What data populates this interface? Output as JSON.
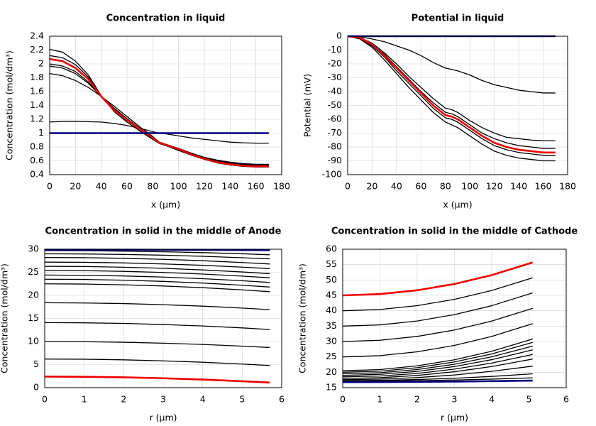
{
  "chart_data": [
    {
      "type": "line",
      "title": "Concentration in liquid",
      "xlabel": "x (µm)",
      "ylabel": "Concentration (mol/dm³)",
      "xlim": [
        0,
        180
      ],
      "ylim": [
        0.4,
        2.4
      ],
      "xticks": [
        0,
        20,
        40,
        60,
        80,
        100,
        120,
        140,
        160,
        180
      ],
      "yticks": [
        0.4,
        0.6,
        0.8,
        1,
        1.2,
        1.4,
        1.6,
        1.8,
        2,
        2.2,
        2.4
      ],
      "grid": true,
      "x": [
        0,
        10,
        20,
        30,
        40,
        50,
        60,
        70,
        80,
        85,
        90,
        100,
        110,
        120,
        130,
        140,
        150,
        160,
        170
      ],
      "series": [
        {
          "color": "#000000",
          "values": [
            1.16,
            1.17,
            1.17,
            1.165,
            1.16,
            1.14,
            1.11,
            1.07,
            1.02,
            1.0,
            0.99,
            0.96,
            0.93,
            0.91,
            0.89,
            0.87,
            0.86,
            0.855,
            0.855
          ]
        },
        {
          "color": "#000000",
          "values": [
            1.86,
            1.83,
            1.76,
            1.66,
            1.53,
            1.39,
            1.24,
            1.09,
            0.95,
            0.87,
            0.84,
            0.78,
            0.71,
            0.65,
            0.61,
            0.58,
            0.56,
            0.55,
            0.55
          ]
        },
        {
          "color": "#000000",
          "values": [
            1.97,
            1.94,
            1.86,
            1.72,
            1.53,
            1.36,
            1.21,
            1.07,
            0.94,
            0.86,
            0.83,
            0.77,
            0.7,
            0.64,
            0.6,
            0.57,
            0.55,
            0.54,
            0.54
          ]
        },
        {
          "color": "#000000",
          "values": [
            2.0,
            1.97,
            1.89,
            1.74,
            1.53,
            1.35,
            1.2,
            1.07,
            0.94,
            0.86,
            0.83,
            0.77,
            0.7,
            0.64,
            0.59,
            0.56,
            0.54,
            0.53,
            0.53
          ]
        },
        {
          "color": "#000000",
          "values": [
            2.12,
            2.09,
            1.99,
            1.81,
            1.54,
            1.33,
            1.18,
            1.05,
            0.92,
            0.85,
            0.82,
            0.76,
            0.69,
            0.63,
            0.58,
            0.55,
            0.53,
            0.52,
            0.52
          ]
        },
        {
          "color": "#000000",
          "values": [
            2.21,
            2.17,
            2.04,
            1.84,
            1.54,
            1.31,
            1.16,
            1.03,
            0.91,
            0.85,
            0.82,
            0.75,
            0.68,
            0.62,
            0.57,
            0.54,
            0.52,
            0.51,
            0.51
          ]
        },
        {
          "color": "#ee0000",
          "values": [
            2.07,
            2.04,
            1.94,
            1.78,
            1.53,
            1.33,
            1.19,
            1.06,
            0.93,
            0.86,
            0.83,
            0.77,
            0.69,
            0.63,
            0.58,
            0.55,
            0.53,
            0.52,
            0.52
          ]
        },
        {
          "color": "#000080",
          "values": [
            1,
            1,
            1,
            1,
            1,
            1,
            1,
            1,
            1,
            1,
            1,
            1,
            1,
            1,
            1,
            1,
            1,
            1,
            1
          ]
        }
      ]
    },
    {
      "type": "line",
      "title": "Potential in liquid",
      "xlabel": "x (µm)",
      "ylabel": "Potential (mV)",
      "xlim": [
        0,
        180
      ],
      "ylim": [
        -100,
        0
      ],
      "xticks": [
        0,
        20,
        40,
        60,
        80,
        100,
        120,
        140,
        160,
        180
      ],
      "yticks": [
        -100,
        -90,
        -80,
        -70,
        -60,
        -50,
        -40,
        -30,
        -20,
        -10,
        0
      ],
      "grid": true,
      "x": [
        0,
        10,
        20,
        30,
        40,
        50,
        60,
        70,
        80,
        85,
        90,
        100,
        110,
        120,
        130,
        140,
        150,
        160,
        170
      ],
      "series": [
        {
          "color": "#000000",
          "values": [
            0,
            -0.5,
            -2,
            -4,
            -7,
            -10,
            -14,
            -19,
            -23,
            -24,
            -25,
            -28,
            -32,
            -35,
            -37,
            -39,
            -40,
            -41,
            -41
          ]
        },
        {
          "color": "#000000",
          "values": [
            0,
            -1,
            -5,
            -12,
            -20,
            -29,
            -37,
            -45,
            -52,
            -53,
            -55,
            -61,
            -66,
            -70,
            -73,
            -74,
            -75,
            -75.5,
            -75.5
          ]
        },
        {
          "color": "#000000",
          "values": [
            0,
            -1,
            -6,
            -13,
            -22,
            -31,
            -40,
            -48,
            -55,
            -56,
            -58,
            -64,
            -70,
            -74,
            -77,
            -79,
            -80,
            -81,
            -81
          ]
        },
        {
          "color": "#000000",
          "values": [
            0,
            -1.5,
            -7,
            -15,
            -25,
            -34,
            -43,
            -52,
            -59,
            -60,
            -62,
            -68,
            -74,
            -79,
            -82,
            -84,
            -85,
            -86,
            -86
          ]
        },
        {
          "color": "#000000",
          "values": [
            0,
            -2,
            -8,
            -17,
            -27,
            -37,
            -46,
            -55,
            -62,
            -64,
            -66,
            -72,
            -78,
            -83,
            -86,
            -88,
            -89,
            -90,
            -90
          ]
        },
        {
          "color": "#ee0000",
          "values": [
            0,
            -1,
            -6,
            -14,
            -23,
            -32,
            -41,
            -50,
            -57,
            -58,
            -60,
            -66,
            -72,
            -77,
            -80,
            -82,
            -83,
            -84,
            -84
          ]
        },
        {
          "color": "#000080",
          "values": [
            0,
            0,
            0,
            0,
            0,
            0,
            0,
            0,
            0,
            0,
            0,
            0,
            0,
            0,
            0,
            0,
            0,
            0,
            0
          ]
        }
      ]
    },
    {
      "type": "line",
      "title": "Concentration in solid in the middle of Anode",
      "xlabel": "r (µm)",
      "ylabel": "Concentration (mol/dm³)",
      "xlim": [
        0,
        6
      ],
      "ylim": [
        0,
        30
      ],
      "xticks": [
        0,
        1,
        2,
        3,
        4,
        5,
        6
      ],
      "yticks": [
        0,
        5,
        10,
        15,
        20,
        25,
        30
      ],
      "grid": true,
      "x": [
        0,
        1,
        2,
        3,
        4,
        5,
        5.7
      ],
      "series": [
        {
          "color": "#000000",
          "values": [
            6.2,
            6.16,
            6.03,
            5.81,
            5.51,
            5.12,
            4.8
          ]
        },
        {
          "color": "#000000",
          "values": [
            10,
            9.96,
            9.84,
            9.64,
            9.36,
            9.0,
            8.7
          ]
        },
        {
          "color": "#000000",
          "values": [
            14.1,
            14.05,
            13.92,
            13.68,
            13.36,
            12.95,
            12.6
          ]
        },
        {
          "color": "#000000",
          "values": [
            18.4,
            18.35,
            18.22,
            17.98,
            17.66,
            17.25,
            16.9
          ]
        },
        {
          "color": "#000000",
          "values": [
            22.5,
            22.45,
            22.29,
            22.03,
            21.66,
            21.19,
            20.8
          ]
        },
        {
          "color": "#000000",
          "values": [
            23.5,
            23.45,
            23.29,
            23.03,
            22.66,
            22.19,
            21.8
          ]
        },
        {
          "color": "#000000",
          "values": [
            24.4,
            24.35,
            24.2,
            23.96,
            23.61,
            23.17,
            22.8
          ]
        },
        {
          "color": "#000000",
          "values": [
            25.4,
            25.35,
            25.2,
            24.96,
            24.61,
            24.17,
            23.8
          ]
        },
        {
          "color": "#000000",
          "values": [
            26.3,
            26.25,
            26.1,
            25.86,
            25.51,
            25.07,
            24.7
          ]
        },
        {
          "color": "#000000",
          "values": [
            27.2,
            27.16,
            27.03,
            26.81,
            26.51,
            26.12,
            25.8
          ]
        },
        {
          "color": "#000000",
          "values": [
            28.2,
            28.16,
            28.03,
            27.81,
            27.51,
            27.12,
            26.8
          ]
        },
        {
          "color": "#000000",
          "values": [
            29,
            28.97,
            28.86,
            28.7,
            28.46,
            28.15,
            27.9
          ]
        },
        {
          "color": "#000000",
          "values": [
            29.7,
            29.67,
            29.59,
            29.45,
            29.26,
            29.01,
            28.8
          ]
        },
        {
          "color": "#ee0000",
          "values": [
            2.4,
            2.36,
            2.24,
            2.04,
            1.76,
            1.4,
            1.1
          ]
        },
        {
          "color": "#000080",
          "values": [
            29.9,
            29.9,
            29.89,
            29.87,
            29.85,
            29.82,
            29.8
          ]
        }
      ]
    },
    {
      "type": "line",
      "title": "Concentration in solid in the middle of Cathode",
      "xlabel": "r (µm)",
      "ylabel": "Concentration (mol/dm³)",
      "xlim": [
        0,
        6
      ],
      "ylim": [
        15,
        60
      ],
      "xticks": [
        0,
        1,
        2,
        3,
        4,
        5,
        6
      ],
      "yticks": [
        15,
        20,
        25,
        30,
        35,
        40,
        45,
        50,
        55,
        60
      ],
      "grid": true,
      "x": [
        0,
        1,
        2,
        3,
        4,
        5.1
      ],
      "series": [
        {
          "color": "#000000",
          "values": [
            40,
            40.41,
            41.65,
            43.7,
            46.58,
            50.7
          ]
        },
        {
          "color": "#000000",
          "values": [
            35,
            35.41,
            36.66,
            38.74,
            41.64,
            45.8
          ]
        },
        {
          "color": "#000000",
          "values": [
            30,
            30.41,
            31.66,
            33.74,
            36.64,
            40.8
          ]
        },
        {
          "color": "#000000",
          "values": [
            25,
            25.41,
            26.66,
            28.74,
            31.64,
            35.8
          ]
        },
        {
          "color": "#000000",
          "values": [
            20.5,
            20.89,
            22.09,
            24.06,
            26.83,
            30.8
          ]
        },
        {
          "color": "#000000",
          "values": [
            20,
            20.37,
            21.49,
            23.36,
            25.97,
            29.7
          ]
        },
        {
          "color": "#000000",
          "values": [
            19.5,
            19.84,
            20.89,
            22.61,
            25.04,
            28.5
          ]
        },
        {
          "color": "#000000",
          "values": [
            19,
            19.32,
            20.28,
            21.87,
            24.1,
            27.3
          ]
        },
        {
          "color": "#000000",
          "values": [
            18.5,
            18.78,
            19.62,
            21.03,
            22.99,
            25.8
          ]
        },
        {
          "color": "#000000",
          "values": [
            18,
            18.24,
            18.97,
            20.18,
            21.87,
            24.3
          ]
        },
        {
          "color": "#000000",
          "values": [
            17.6,
            17.77,
            18.28,
            19.12,
            20.31,
            22
          ]
        },
        {
          "color": "#000000",
          "values": [
            17.3,
            17.38,
            17.64,
            18.06,
            18.65,
            19.5
          ]
        },
        {
          "color": "#000000",
          "values": [
            17.1,
            17.14,
            17.27,
            17.48,
            17.78,
            18.2
          ]
        },
        {
          "color": "#ee0000",
          "values": [
            45,
            45.41,
            46.65,
            48.7,
            51.58,
            55.7
          ]
        },
        {
          "color": "#000080",
          "values": [
            16.8,
            16.82,
            16.88,
            16.97,
            17.11,
            17.3
          ]
        }
      ]
    }
  ]
}
